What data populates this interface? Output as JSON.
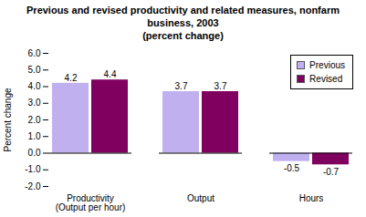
{
  "chart_data": {
    "type": "bar",
    "title": "Previous and revised productivity and related measures, nonfarm business, 2003",
    "subtitle": "(percent change)",
    "ylabel": "Percent change",
    "categories": [
      "Productivity (Output per hour)",
      "Output",
      "Hours"
    ],
    "series": [
      {
        "name": "Previous",
        "color": "#c0b0f0",
        "values": [
          4.2,
          3.7,
          -0.5
        ]
      },
      {
        "name": "Revised",
        "color": "#800060",
        "values": [
          4.4,
          3.7,
          -0.7
        ]
      }
    ],
    "ylim": [
      -2,
      6
    ],
    "yticks": [
      {
        "value": -2,
        "label": "-2.0"
      },
      {
        "value": -1,
        "label": "-1.0"
      },
      {
        "value": 0,
        "label": "0.0"
      },
      {
        "value": 1,
        "label": "1.0"
      },
      {
        "value": 2,
        "label": "2.0"
      },
      {
        "value": 3,
        "label": "3.0"
      },
      {
        "value": 4,
        "label": "4.0"
      },
      {
        "value": 5,
        "label": "5.0"
      },
      {
        "value": 6,
        "label": "6.0"
      }
    ],
    "data_labels": true,
    "legend": "top-right"
  }
}
